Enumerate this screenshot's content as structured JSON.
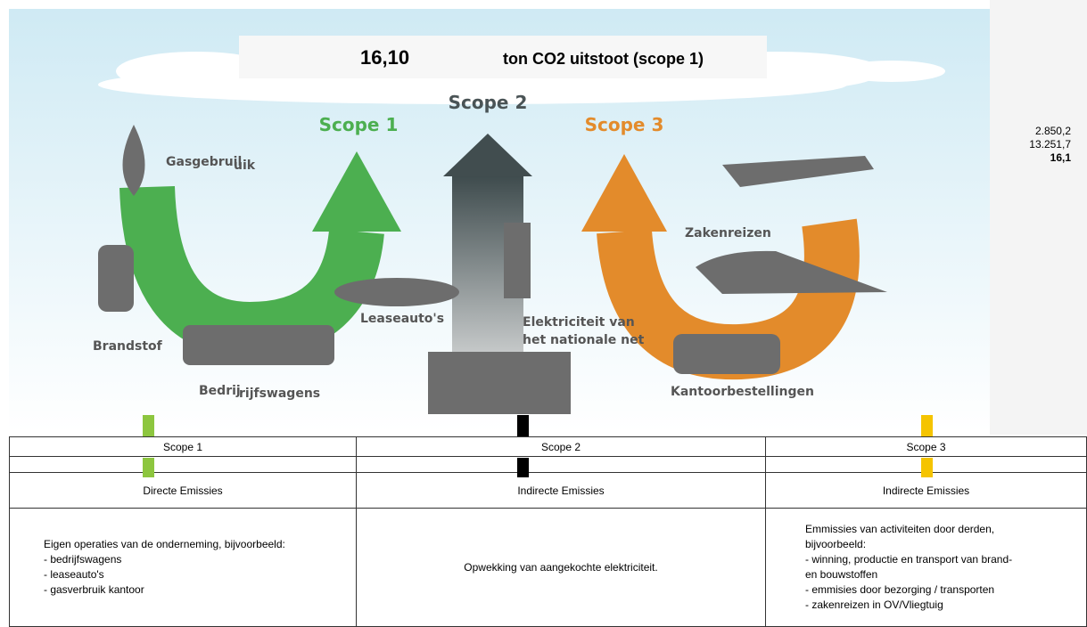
{
  "infographic": {
    "scope_labels": [
      "Scope 1",
      "Scope 2",
      "Scope 3"
    ],
    "labels": {
      "gas_a": "Gasgebruil",
      "gas_b": "uik",
      "brandstof": "Brandstof",
      "bedrijf_a": "Bedrij",
      "bedrijf_b": "rijfswagens",
      "lease": "Leaseauto's",
      "elek_1": "Elektriciteit van",
      "elek_2": "het nationale net",
      "zaken": "Zakenreizen",
      "kantoor": "Kantoorbestellingen"
    }
  },
  "summary": {
    "value": "16,10",
    "text": "ton CO2 uitstoot (scope 1)"
  },
  "side_values": [
    "2.850,2",
    "13.251,7",
    "16,1"
  ],
  "table": {
    "columns": [
      {
        "scope": "Scope 1",
        "type": "Directe Emissies",
        "description": [
          "Eigen operaties van de onderneming, bijvoorbeeld:",
          "- bedrijfswagens",
          "- leaseauto's",
          "- gasverbruik kantoor"
        ]
      },
      {
        "scope": "Scope 2",
        "type": "Indirecte Emissies",
        "description": [
          "Opwekking van aangekochte elektriciteit."
        ]
      },
      {
        "scope": "Scope 3",
        "type": "Indirecte Emissies",
        "description": [
          "Emmissies van activiteiten door derden,",
          "bijvoorbeeld:",
          "- winning, productie en transport van brand-",
          "en bouwstoffen",
          "- emmisies door bezorging / transporten",
          "- zakenreizen in OV/Vliegtuig"
        ]
      }
    ]
  }
}
